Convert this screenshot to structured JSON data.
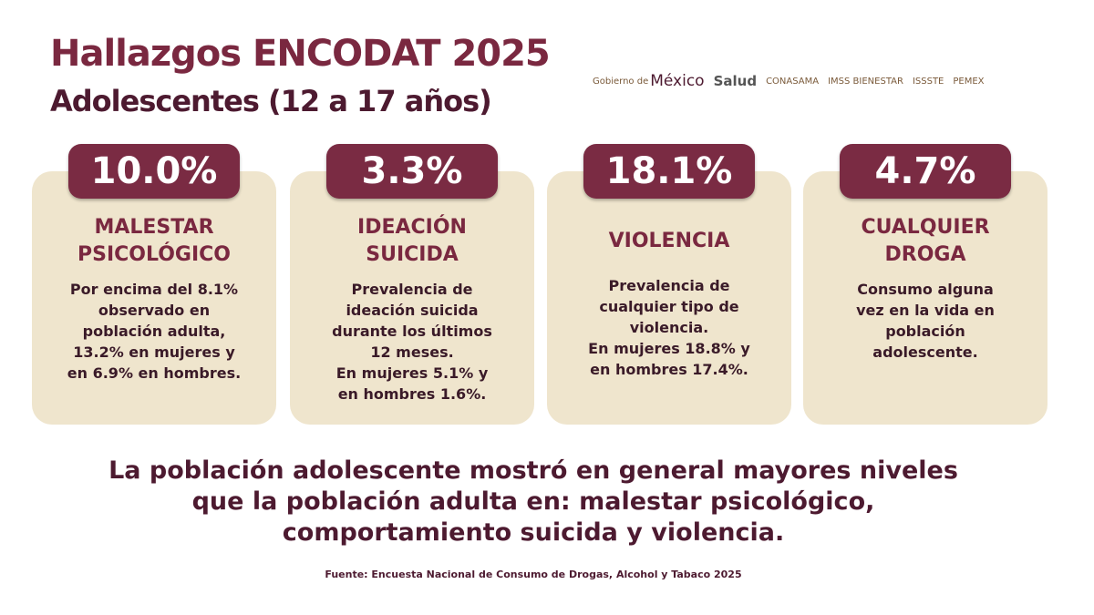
{
  "header": {
    "title": "Hallazgos ENCODAT 2025",
    "subtitle": "Adolescentes (12 a 17 años)"
  },
  "logos": [
    "Gobierno de",
    "México",
    "Salud",
    "CONASAMA",
    "IMSS BIENESTAR",
    "ISSSTE",
    "PEMEX"
  ],
  "cards": [
    {
      "value": "10.0%",
      "label": [
        "MALESTAR",
        "PSICOLÓGICO"
      ],
      "description": [
        "Por encima del 8.1%",
        "observado en",
        "población adulta,",
        "13.2% en mujeres y",
        "en 6.9% en hombres."
      ]
    },
    {
      "value": "3.3%",
      "label": [
        "IDEACIÓN",
        "SUICIDA"
      ],
      "description": [
        "Prevalencia de",
        "ideación suicida",
        "durante los últimos",
        "12 meses.",
        "En mujeres 5.1% y",
        "en hombres 1.6%."
      ]
    },
    {
      "value": "18.1%",
      "label": [
        "VIOLENCIA"
      ],
      "description": [
        "Prevalencia de",
        "cualquier tipo de",
        "violencia.",
        "En mujeres 18.8% y",
        "en hombres 17.4%."
      ]
    },
    {
      "value": "4.7%",
      "label": [
        "CUALQUIER",
        "DROGA"
      ],
      "description": [
        "Consumo alguna",
        "vez en la vida en",
        "población",
        "adolescente."
      ]
    }
  ],
  "conclusion": [
    "La población adolescente mostró en general mayores niveles",
    "que la población adulta en: malestar psicológico,",
    "comportamiento suicida y violencia."
  ],
  "source": "Fuente: Encuesta Nacional de Consumo de Drogas, Alcohol y Tabaco 2025"
}
